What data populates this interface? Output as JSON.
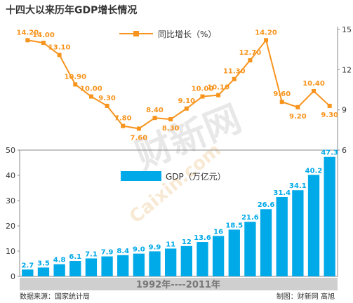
{
  "chart_data": {
    "title": "十四大以来历年GDP增长情况",
    "source": "数据来源：国家统计局",
    "credit": "制图：财新网 高旭",
    "period_label": "1992年----2011年",
    "watermark": "财新网 Caixin.com",
    "colors": {
      "growth": "#f7941e",
      "gdp": "#00a9e8",
      "frame": "#888888",
      "band": "#cfcfcf"
    },
    "growth_chart": {
      "type": "line",
      "series_name": "同比增长（%）",
      "values": [
        14.2,
        14.0,
        13.1,
        10.9,
        10.0,
        9.3,
        7.8,
        7.6,
        8.4,
        8.3,
        9.1,
        10.0,
        10.1,
        11.3,
        12.7,
        14.2,
        9.6,
        9.2,
        10.4,
        9.3
      ],
      "labels": [
        "14.20",
        "14.00",
        "13.10",
        "10.90",
        "10.00",
        "9.30",
        "7.80",
        "7.60",
        "8.40",
        "8.30",
        "9.10",
        "10.00",
        "10.10",
        "11.30",
        "12.70",
        "14.20",
        "9.60",
        "9.20",
        "10.40",
        "9.30"
      ],
      "right_axis_ticks": [
        "15",
        "12",
        "9",
        "6"
      ],
      "ylim": [
        6,
        15
      ]
    },
    "gdp_chart": {
      "type": "bar",
      "series_name": "GDP（万亿元）",
      "values": [
        2.7,
        3.5,
        4.8,
        6.1,
        7.1,
        7.9,
        8.4,
        9.0,
        9.9,
        11,
        12,
        13.6,
        16,
        18.5,
        21.6,
        26.6,
        31.4,
        34.1,
        40.2,
        47.3
      ],
      "labels": [
        "2.7",
        "3.5",
        "4.8",
        "6.1",
        "7.1",
        "7.9",
        "8.4",
        "9.0",
        "9.9",
        "11",
        "12",
        "13.6",
        "16",
        "18.5",
        "21.6",
        "26.6",
        "31.4",
        "34.1",
        "40.2",
        "47.3"
      ],
      "left_axis_ticks": [
        "50",
        "40",
        "30",
        "20",
        "10",
        "0"
      ],
      "ylim": [
        0,
        50
      ]
    }
  }
}
